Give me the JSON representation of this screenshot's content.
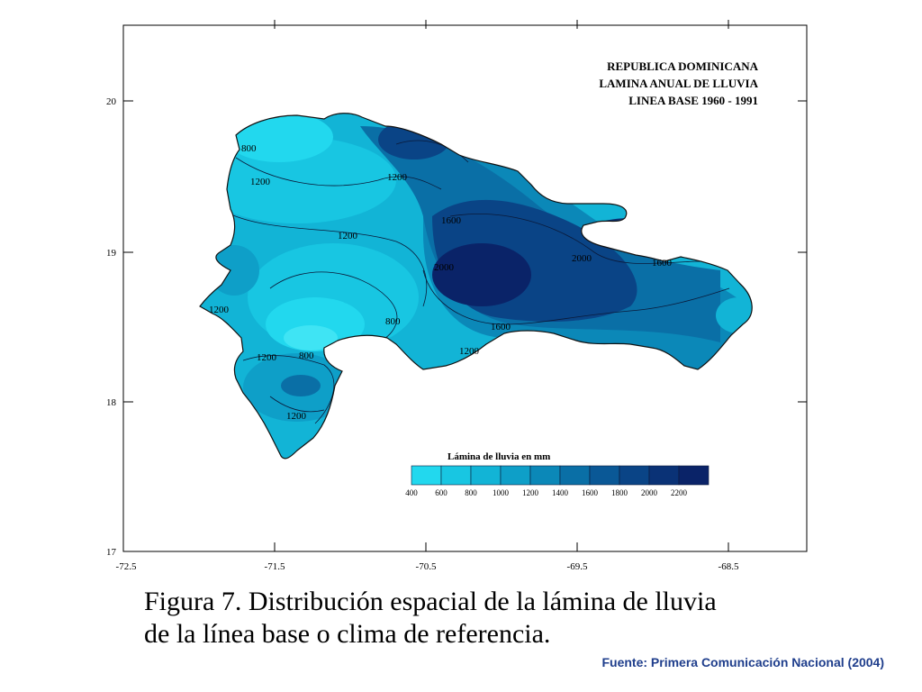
{
  "map": {
    "title_lines": [
      "REPUBLICA DOMINICANA",
      "LAMINA ANUAL DE LLUVIA",
      "LINEA BASE 1960 - 1991"
    ],
    "x_ticks": [
      "-72.5",
      "-71.5",
      "-70.5",
      "-69.5",
      "-68.5"
    ],
    "y_ticks": [
      "20",
      "19",
      "18",
      "17"
    ],
    "contour_labels": [
      "800",
      "1200",
      "1200",
      "1200",
      "1600",
      "2000",
      "1600",
      "1200",
      "2000",
      "1600",
      "800",
      "800",
      "1200",
      "1200",
      "1200"
    ],
    "legend": {
      "title": "Lámina de lluvia en mm",
      "values": [
        "400",
        "600",
        "800",
        "1000",
        "1200",
        "1400",
        "1600",
        "1800",
        "2000",
        "2200"
      ],
      "colors": [
        "#22d8ee",
        "#18c6e2",
        "#12b4d6",
        "#0e9fc8",
        "#0b88b8",
        "#0a6fa6",
        "#0a5896",
        "#0a4486",
        "#0a3276",
        "#0a2368"
      ]
    }
  },
  "caption": {
    "line1": "Figura 7. Distribución espacial de la lámina de lluvia",
    "line2": "de la línea base o clima de referencia."
  },
  "source": "Fuente: Primera Comunicación Nacional (2004)"
}
